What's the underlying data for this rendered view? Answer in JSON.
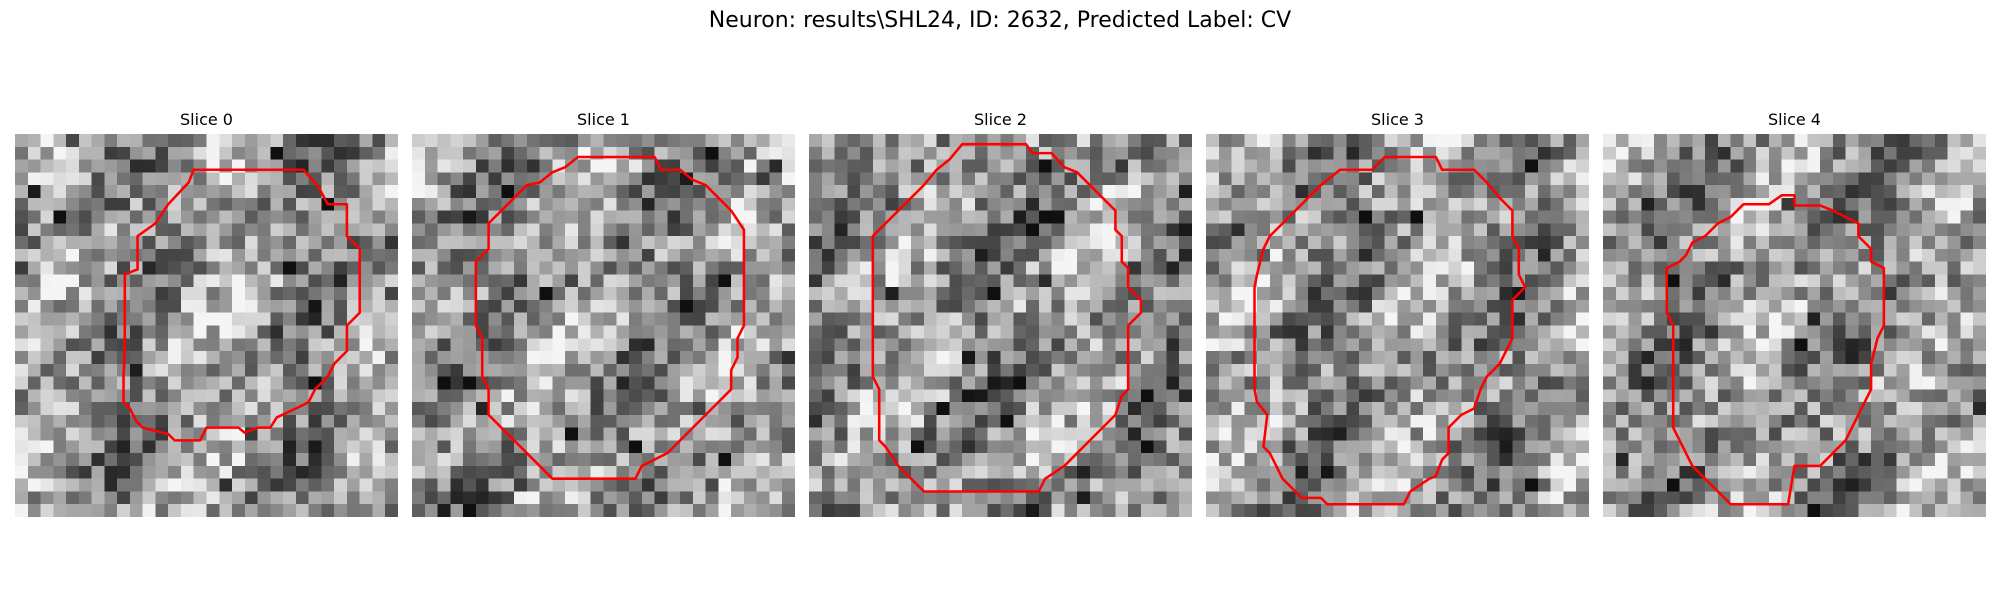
{
  "figure": {
    "title": "Neuron: results\\SHL24, ID: 2632, Predicted Label: CV",
    "outline_color": "#ff0000",
    "colormap": "grayscale",
    "grid_cells": 30
  },
  "panels": [
    {
      "title": "Slice 0"
    },
    {
      "title": "Slice 1"
    },
    {
      "title": "Slice 2"
    },
    {
      "title": "Slice 3"
    },
    {
      "title": "Slice 4"
    }
  ]
}
